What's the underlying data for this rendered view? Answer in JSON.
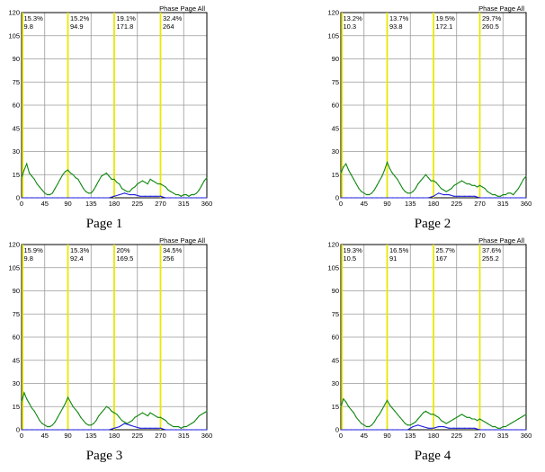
{
  "colors": {
    "grid": "#9a9a9a",
    "axis": "#000000",
    "marker": "#e8e800",
    "green": "#118811",
    "blue": "#1f1fdd",
    "background": "#ffffff"
  },
  "chart_data": [
    {
      "type": "line",
      "caption": "Page 1",
      "legend_label": "Phase Page All",
      "xlim": [
        0,
        360
      ],
      "ylim": [
        0,
        120
      ],
      "x_ticks": [
        0,
        45,
        90,
        135,
        180,
        225,
        270,
        315,
        360
      ],
      "y_ticks": [
        0,
        15,
        30,
        45,
        60,
        75,
        90,
        105,
        120
      ],
      "grid": true,
      "markers": [
        {
          "x": 0,
          "percent": "15.3%",
          "value": "9.8"
        },
        {
          "x": 90,
          "percent": "15.2%",
          "value": "94.9"
        },
        {
          "x": 180,
          "percent": "19.1%",
          "value": "171.8"
        },
        {
          "x": 270,
          "percent": "32.4%",
          "value": "264"
        }
      ],
      "series": [
        {
          "color": "green",
          "x": [
            0,
            5,
            10,
            15,
            20,
            25,
            30,
            35,
            40,
            45,
            50,
            55,
            60,
            65,
            70,
            75,
            80,
            85,
            90,
            95,
            100,
            105,
            110,
            115,
            120,
            125,
            130,
            135,
            140,
            145,
            150,
            155,
            160,
            165,
            170,
            175,
            180,
            185,
            190,
            195,
            200,
            205,
            210,
            215,
            220,
            225,
            230,
            235,
            240,
            245,
            250,
            255,
            260,
            265,
            270,
            275,
            280,
            285,
            290,
            295,
            300,
            305,
            310,
            315,
            320,
            325,
            330,
            335,
            340,
            345,
            350,
            355,
            360
          ],
          "y": [
            13,
            18,
            22,
            16,
            14,
            12,
            9,
            7,
            5,
            3,
            2,
            2,
            3,
            6,
            9,
            12,
            15,
            17,
            18,
            16,
            15,
            13,
            12,
            9,
            6,
            4,
            3,
            3,
            5,
            8,
            11,
            14,
            15,
            16,
            14,
            12,
            12,
            10,
            9,
            6,
            5,
            4,
            4,
            6,
            7,
            9,
            10,
            11,
            10,
            9,
            12,
            11,
            10,
            9,
            9,
            8,
            7,
            5,
            4,
            3,
            2,
            2,
            1,
            2,
            2,
            1,
            2,
            2,
            3,
            5,
            8,
            11,
            13
          ]
        },
        {
          "color": "blue",
          "x": [
            0,
            10,
            20,
            30,
            40,
            50,
            60,
            70,
            80,
            90,
            100,
            110,
            120,
            130,
            140,
            150,
            160,
            170,
            180,
            190,
            200,
            210,
            220,
            230,
            240,
            250,
            260,
            270,
            280,
            290,
            300,
            310,
            320,
            330,
            340,
            350,
            360
          ],
          "y": [
            0,
            0,
            0,
            0,
            0,
            0,
            0,
            0,
            0,
            0,
            0,
            0,
            0,
            0,
            0,
            0,
            0,
            0,
            1,
            2,
            3,
            2,
            2,
            1,
            1,
            1,
            1,
            1,
            0,
            0,
            0,
            0,
            0,
            0,
            0,
            0,
            0
          ]
        }
      ]
    },
    {
      "type": "line",
      "caption": "Page 2",
      "legend_label": "Phase Page All",
      "xlim": [
        0,
        360
      ],
      "ylim": [
        0,
        120
      ],
      "x_ticks": [
        0,
        45,
        90,
        135,
        180,
        225,
        270,
        315,
        360
      ],
      "y_ticks": [
        0,
        15,
        30,
        45,
        60,
        75,
        90,
        105,
        120
      ],
      "grid": true,
      "markers": [
        {
          "x": 0,
          "percent": "13.2%",
          "value": "10.3"
        },
        {
          "x": 90,
          "percent": "13.7%",
          "value": "93.8"
        },
        {
          "x": 180,
          "percent": "19.5%",
          "value": "172.1"
        },
        {
          "x": 270,
          "percent": "29.7%",
          "value": "260.5"
        }
      ],
      "series": [
        {
          "color": "green",
          "x": [
            0,
            5,
            10,
            15,
            20,
            25,
            30,
            35,
            40,
            45,
            50,
            55,
            60,
            65,
            70,
            75,
            80,
            85,
            90,
            95,
            100,
            105,
            110,
            115,
            120,
            125,
            130,
            135,
            140,
            145,
            150,
            155,
            160,
            165,
            170,
            175,
            180,
            185,
            190,
            195,
            200,
            205,
            210,
            215,
            220,
            225,
            230,
            235,
            240,
            245,
            250,
            255,
            260,
            265,
            270,
            275,
            280,
            285,
            290,
            295,
            300,
            305,
            310,
            315,
            320,
            325,
            330,
            335,
            340,
            345,
            350,
            355,
            360
          ],
          "y": [
            16,
            20,
            22,
            18,
            15,
            12,
            9,
            6,
            4,
            3,
            2,
            2,
            3,
            5,
            8,
            11,
            14,
            18,
            23,
            19,
            16,
            14,
            12,
            9,
            6,
            4,
            3,
            3,
            4,
            6,
            9,
            11,
            13,
            15,
            13,
            11,
            11,
            10,
            8,
            6,
            5,
            4,
            5,
            6,
            8,
            9,
            10,
            11,
            10,
            9,
            9,
            8,
            8,
            7,
            8,
            7,
            6,
            4,
            3,
            2,
            2,
            1,
            1,
            2,
            2,
            3,
            3,
            2,
            4,
            6,
            9,
            12,
            14
          ]
        },
        {
          "color": "blue",
          "x": [
            0,
            10,
            20,
            30,
            40,
            50,
            60,
            70,
            80,
            90,
            100,
            110,
            120,
            130,
            140,
            150,
            160,
            170,
            180,
            190,
            200,
            210,
            220,
            230,
            240,
            250,
            260,
            270,
            280,
            290,
            300,
            310,
            320,
            330,
            340,
            350,
            360
          ],
          "y": [
            0,
            0,
            0,
            0,
            0,
            0,
            0,
            0,
            0,
            0,
            0,
            0,
            0,
            0,
            0,
            0,
            0,
            0,
            1,
            3,
            2,
            2,
            1,
            1,
            1,
            1,
            1,
            0,
            0,
            0,
            0,
            0,
            0,
            0,
            0,
            0,
            0
          ]
        }
      ]
    },
    {
      "type": "line",
      "caption": "Page 3",
      "legend_label": "Phase Page All",
      "xlim": [
        0,
        360
      ],
      "ylim": [
        0,
        120
      ],
      "x_ticks": [
        0,
        45,
        90,
        135,
        180,
        225,
        270,
        315,
        360
      ],
      "y_ticks": [
        0,
        15,
        30,
        45,
        60,
        75,
        90,
        105,
        120
      ],
      "grid": true,
      "markers": [
        {
          "x": 0,
          "percent": "15.9%",
          "value": "9.8"
        },
        {
          "x": 90,
          "percent": "15.3%",
          "value": "92.4"
        },
        {
          "x": 180,
          "percent": "20%",
          "value": "169.5"
        },
        {
          "x": 270,
          "percent": "34.5%",
          "value": "256"
        }
      ],
      "series": [
        {
          "color": "green",
          "x": [
            0,
            5,
            10,
            15,
            20,
            25,
            30,
            35,
            40,
            45,
            50,
            55,
            60,
            65,
            70,
            75,
            80,
            85,
            90,
            95,
            100,
            105,
            110,
            115,
            120,
            125,
            130,
            135,
            140,
            145,
            150,
            155,
            160,
            165,
            170,
            175,
            180,
            185,
            190,
            195,
            200,
            205,
            210,
            215,
            220,
            225,
            230,
            235,
            240,
            245,
            250,
            255,
            260,
            265,
            270,
            275,
            280,
            285,
            290,
            295,
            300,
            305,
            310,
            315,
            320,
            325,
            330,
            335,
            340,
            345,
            350,
            355,
            360
          ],
          "y": [
            18,
            24,
            20,
            17,
            14,
            12,
            9,
            6,
            4,
            3,
            2,
            2,
            3,
            5,
            8,
            11,
            14,
            17,
            21,
            18,
            15,
            13,
            11,
            8,
            6,
            4,
            3,
            3,
            4,
            6,
            9,
            11,
            13,
            15,
            14,
            12,
            11,
            10,
            8,
            6,
            5,
            4,
            5,
            6,
            8,
            9,
            10,
            11,
            10,
            9,
            11,
            10,
            9,
            8,
            8,
            7,
            6,
            4,
            3,
            2,
            2,
            2,
            1,
            2,
            2,
            3,
            4,
            5,
            7,
            9,
            10,
            11,
            12
          ]
        },
        {
          "color": "blue",
          "x": [
            0,
            10,
            20,
            30,
            40,
            50,
            60,
            70,
            80,
            90,
            100,
            110,
            120,
            130,
            140,
            150,
            160,
            170,
            180,
            190,
            200,
            210,
            220,
            230,
            240,
            250,
            260,
            270,
            280,
            290,
            300,
            310,
            320,
            330,
            340,
            350,
            360
          ],
          "y": [
            0,
            0,
            0,
            0,
            0,
            0,
            0,
            0,
            0,
            0,
            0,
            0,
            0,
            0,
            0,
            0,
            0,
            0,
            1,
            2,
            4,
            3,
            2,
            1,
            1,
            1,
            1,
            1,
            0,
            0,
            0,
            0,
            0,
            0,
            0,
            0,
            0
          ]
        }
      ]
    },
    {
      "type": "line",
      "caption": "Page 4",
      "legend_label": "Phase Page All",
      "xlim": [
        0,
        360
      ],
      "ylim": [
        0,
        120
      ],
      "x_ticks": [
        0,
        45,
        90,
        135,
        180,
        225,
        270,
        315,
        360
      ],
      "y_ticks": [
        0,
        15,
        30,
        45,
        60,
        75,
        90,
        105,
        120
      ],
      "grid": true,
      "markers": [
        {
          "x": 0,
          "percent": "19.3%",
          "value": "10.5"
        },
        {
          "x": 90,
          "percent": "16.5%",
          "value": "91"
        },
        {
          "x": 180,
          "percent": "25.7%",
          "value": "167"
        },
        {
          "x": 270,
          "percent": "37.6%",
          "value": "255.2"
        }
      ],
      "series": [
        {
          "color": "green",
          "x": [
            0,
            5,
            10,
            15,
            20,
            25,
            30,
            35,
            40,
            45,
            50,
            55,
            60,
            65,
            70,
            75,
            80,
            85,
            90,
            95,
            100,
            105,
            110,
            115,
            120,
            125,
            130,
            135,
            140,
            145,
            150,
            155,
            160,
            165,
            170,
            175,
            180,
            185,
            190,
            195,
            200,
            205,
            210,
            215,
            220,
            225,
            230,
            235,
            240,
            245,
            250,
            255,
            260,
            265,
            270,
            275,
            280,
            285,
            290,
            295,
            300,
            305,
            310,
            315,
            320,
            325,
            330,
            335,
            340,
            345,
            350,
            355,
            360
          ],
          "y": [
            15,
            20,
            18,
            15,
            13,
            11,
            8,
            6,
            4,
            3,
            2,
            2,
            3,
            5,
            8,
            10,
            13,
            16,
            19,
            16,
            14,
            12,
            10,
            8,
            6,
            4,
            3,
            3,
            4,
            5,
            7,
            9,
            11,
            12,
            11,
            10,
            10,
            9,
            8,
            6,
            5,
            4,
            5,
            6,
            7,
            8,
            9,
            10,
            9,
            8,
            8,
            7,
            7,
            6,
            7,
            6,
            5,
            4,
            3,
            2,
            2,
            1,
            1,
            2,
            2,
            3,
            4,
            5,
            6,
            7,
            8,
            9,
            10
          ]
        },
        {
          "color": "blue",
          "x": [
            0,
            10,
            20,
            30,
            40,
            50,
            60,
            70,
            80,
            90,
            100,
            110,
            120,
            130,
            140,
            150,
            160,
            170,
            180,
            190,
            200,
            210,
            220,
            230,
            240,
            250,
            260,
            270,
            280,
            290,
            300,
            310,
            320,
            330,
            340,
            350,
            360
          ],
          "y": [
            0,
            0,
            0,
            0,
            0,
            0,
            0,
            0,
            0,
            0,
            0,
            0,
            0,
            0,
            2,
            3,
            2,
            1,
            1,
            2,
            2,
            1,
            1,
            1,
            1,
            1,
            1,
            0,
            0,
            0,
            0,
            0,
            0,
            0,
            0,
            0,
            0
          ]
        }
      ]
    }
  ]
}
